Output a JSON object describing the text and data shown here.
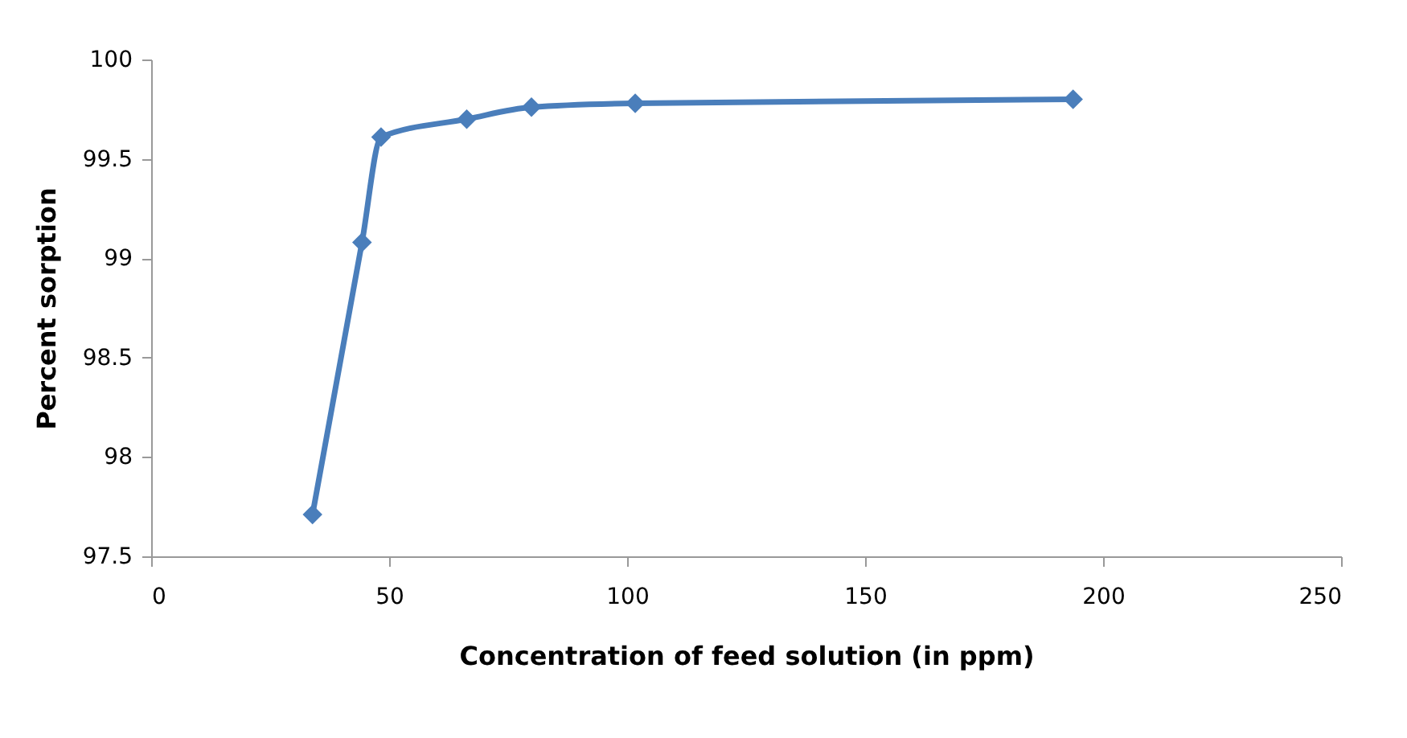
{
  "chart_data": {
    "type": "line",
    "xlabel": "Concentration of feed solution (in ppm)",
    "ylabel": "Percent sorption",
    "x": [
      33.9,
      44.3,
      48.3,
      66.3,
      79.9,
      101.7,
      193.7
    ],
    "series": [
      {
        "color": "#4a7ebb",
        "values": [
          97.71,
          99.08,
          99.61,
          99.7,
          99.76,
          99.78,
          99.8
        ]
      }
    ],
    "xlim": [
      0,
      250
    ],
    "xticks": [
      0,
      50,
      100,
      150,
      200,
      250
    ],
    "ylim": [
      97.5,
      100
    ],
    "yticks": [
      97.5,
      98,
      98.5,
      99,
      99.5,
      100
    ],
    "marker": "diamond",
    "line_style": "solid",
    "grid": false,
    "legend": false
  }
}
